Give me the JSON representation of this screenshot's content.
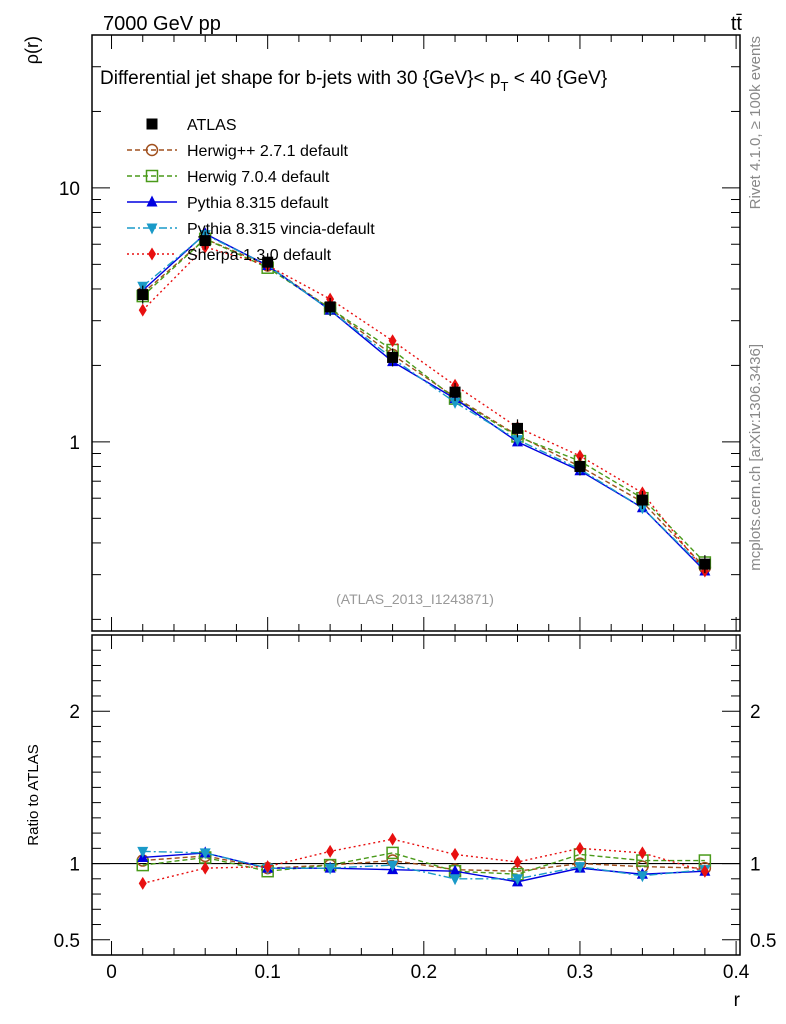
{
  "header": {
    "energy_label": "7000 GeV pp",
    "process_label": "tt̄"
  },
  "side_labels": {
    "rivet": "Rivet 4.1.0, ≥ 100k events",
    "mcplots": "mcplots.cern.ch [arXiv:1306.3436]"
  },
  "chart_data": {
    "type": "line",
    "title": "Differential jet shape for b-jets with 30 {GeV}< p_T < 40 {GeV}",
    "title_main": "Differential jet shape for b-jets with 30 {GeV}< p",
    "title_sub": "T",
    "title_tail": " < 40 {GeV}",
    "analysis_tag": "(ATLAS_2013_I1243871)",
    "xlabel": "r",
    "ylabel": "ρ(r)",
    "ratio_ylabel": "Ratio to ATLAS",
    "xlim": [
      -0.0125,
      0.4025
    ],
    "ylim": [
      0.18,
      40
    ],
    "yscale": "log",
    "ratio_ylim": [
      0.4,
      2.5
    ],
    "x_ticks": [
      "0",
      "0.1",
      "0.2",
      "0.3",
      "0.4"
    ],
    "x_tick_values": [
      0,
      0.1,
      0.2,
      0.3,
      0.4
    ],
    "y_ticks": [
      "1",
      "10"
    ],
    "y_tick_values": [
      1,
      10
    ],
    "ratio_ticks": [
      "0.5",
      "1",
      "2"
    ],
    "ratio_tick_values": [
      0.5,
      1,
      2
    ],
    "x": [
      0.02,
      0.06,
      0.1,
      0.14,
      0.18,
      0.22,
      0.26,
      0.3,
      0.34,
      0.38
    ],
    "series": [
      {
        "name": "ATLAS",
        "color": "#000000",
        "marker": "square-filled",
        "dash": "none",
        "values": [
          3.8,
          6.2,
          5.1,
          3.4,
          2.15,
          1.57,
          1.13,
          0.8,
          0.59,
          0.33
        ]
      },
      {
        "name": "Herwig++ 2.7.1 default",
        "color": "#a0501e",
        "marker": "circle-open",
        "dash": "5,3",
        "values": [
          3.85,
          6.3,
          4.95,
          3.35,
          2.2,
          1.5,
          1.06,
          0.8,
          0.58,
          0.32
        ]
      },
      {
        "name": "Herwig 7.0.4 default",
        "color": "#4a9a1a",
        "marker": "square-open",
        "dash": "5,3",
        "values": [
          3.75,
          6.3,
          4.85,
          3.35,
          2.3,
          1.48,
          1.05,
          0.84,
          0.6,
          0.335
        ]
      },
      {
        "name": "Pythia 8.315 default",
        "color": "#0000e0",
        "marker": "triangle-up",
        "dash": "none",
        "values": [
          3.95,
          6.6,
          4.95,
          3.3,
          2.07,
          1.48,
          1.0,
          0.77,
          0.55,
          0.31
        ]
      },
      {
        "name": "Pythia 8.315 vincia-default",
        "color": "#1a9ac8",
        "marker": "triangle-down",
        "dash": "8,3,2,3",
        "values": [
          4.1,
          6.55,
          4.95,
          3.3,
          2.13,
          1.43,
          1.02,
          0.78,
          0.55,
          0.315
        ]
      },
      {
        "name": "Sherpa 1.3.0 default",
        "color": "#e81010",
        "marker": "diamond",
        "dash": "2,3",
        "values": [
          3.3,
          5.85,
          4.95,
          3.65,
          2.5,
          1.67,
          1.14,
          0.88,
          0.63,
          0.31
        ]
      }
    ],
    "ratio_series": [
      {
        "name": "Herwig++ 2.7.1 default",
        "values": [
          1.02,
          1.05,
          0.97,
          0.99,
          1.02,
          0.96,
          0.95,
          1.0,
          0.98,
          0.97
        ]
      },
      {
        "name": "Herwig 7.0.4 default",
        "values": [
          0.99,
          1.04,
          0.95,
          0.99,
          1.07,
          0.95,
          0.93,
          1.06,
          1.02,
          1.02
        ]
      },
      {
        "name": "Pythia 8.315 default",
        "values": [
          1.04,
          1.07,
          0.97,
          0.97,
          0.96,
          0.95,
          0.88,
          0.97,
          0.93,
          0.95
        ]
      },
      {
        "name": "Pythia 8.315 vincia-default",
        "values": [
          1.08,
          1.07,
          0.97,
          0.97,
          0.99,
          0.9,
          0.9,
          0.98,
          0.92,
          0.96
        ]
      },
      {
        "name": "Sherpa 1.3.0 default",
        "values": [
          0.87,
          0.97,
          0.98,
          1.08,
          1.16,
          1.06,
          1.01,
          1.1,
          1.07,
          0.95
        ]
      }
    ]
  }
}
